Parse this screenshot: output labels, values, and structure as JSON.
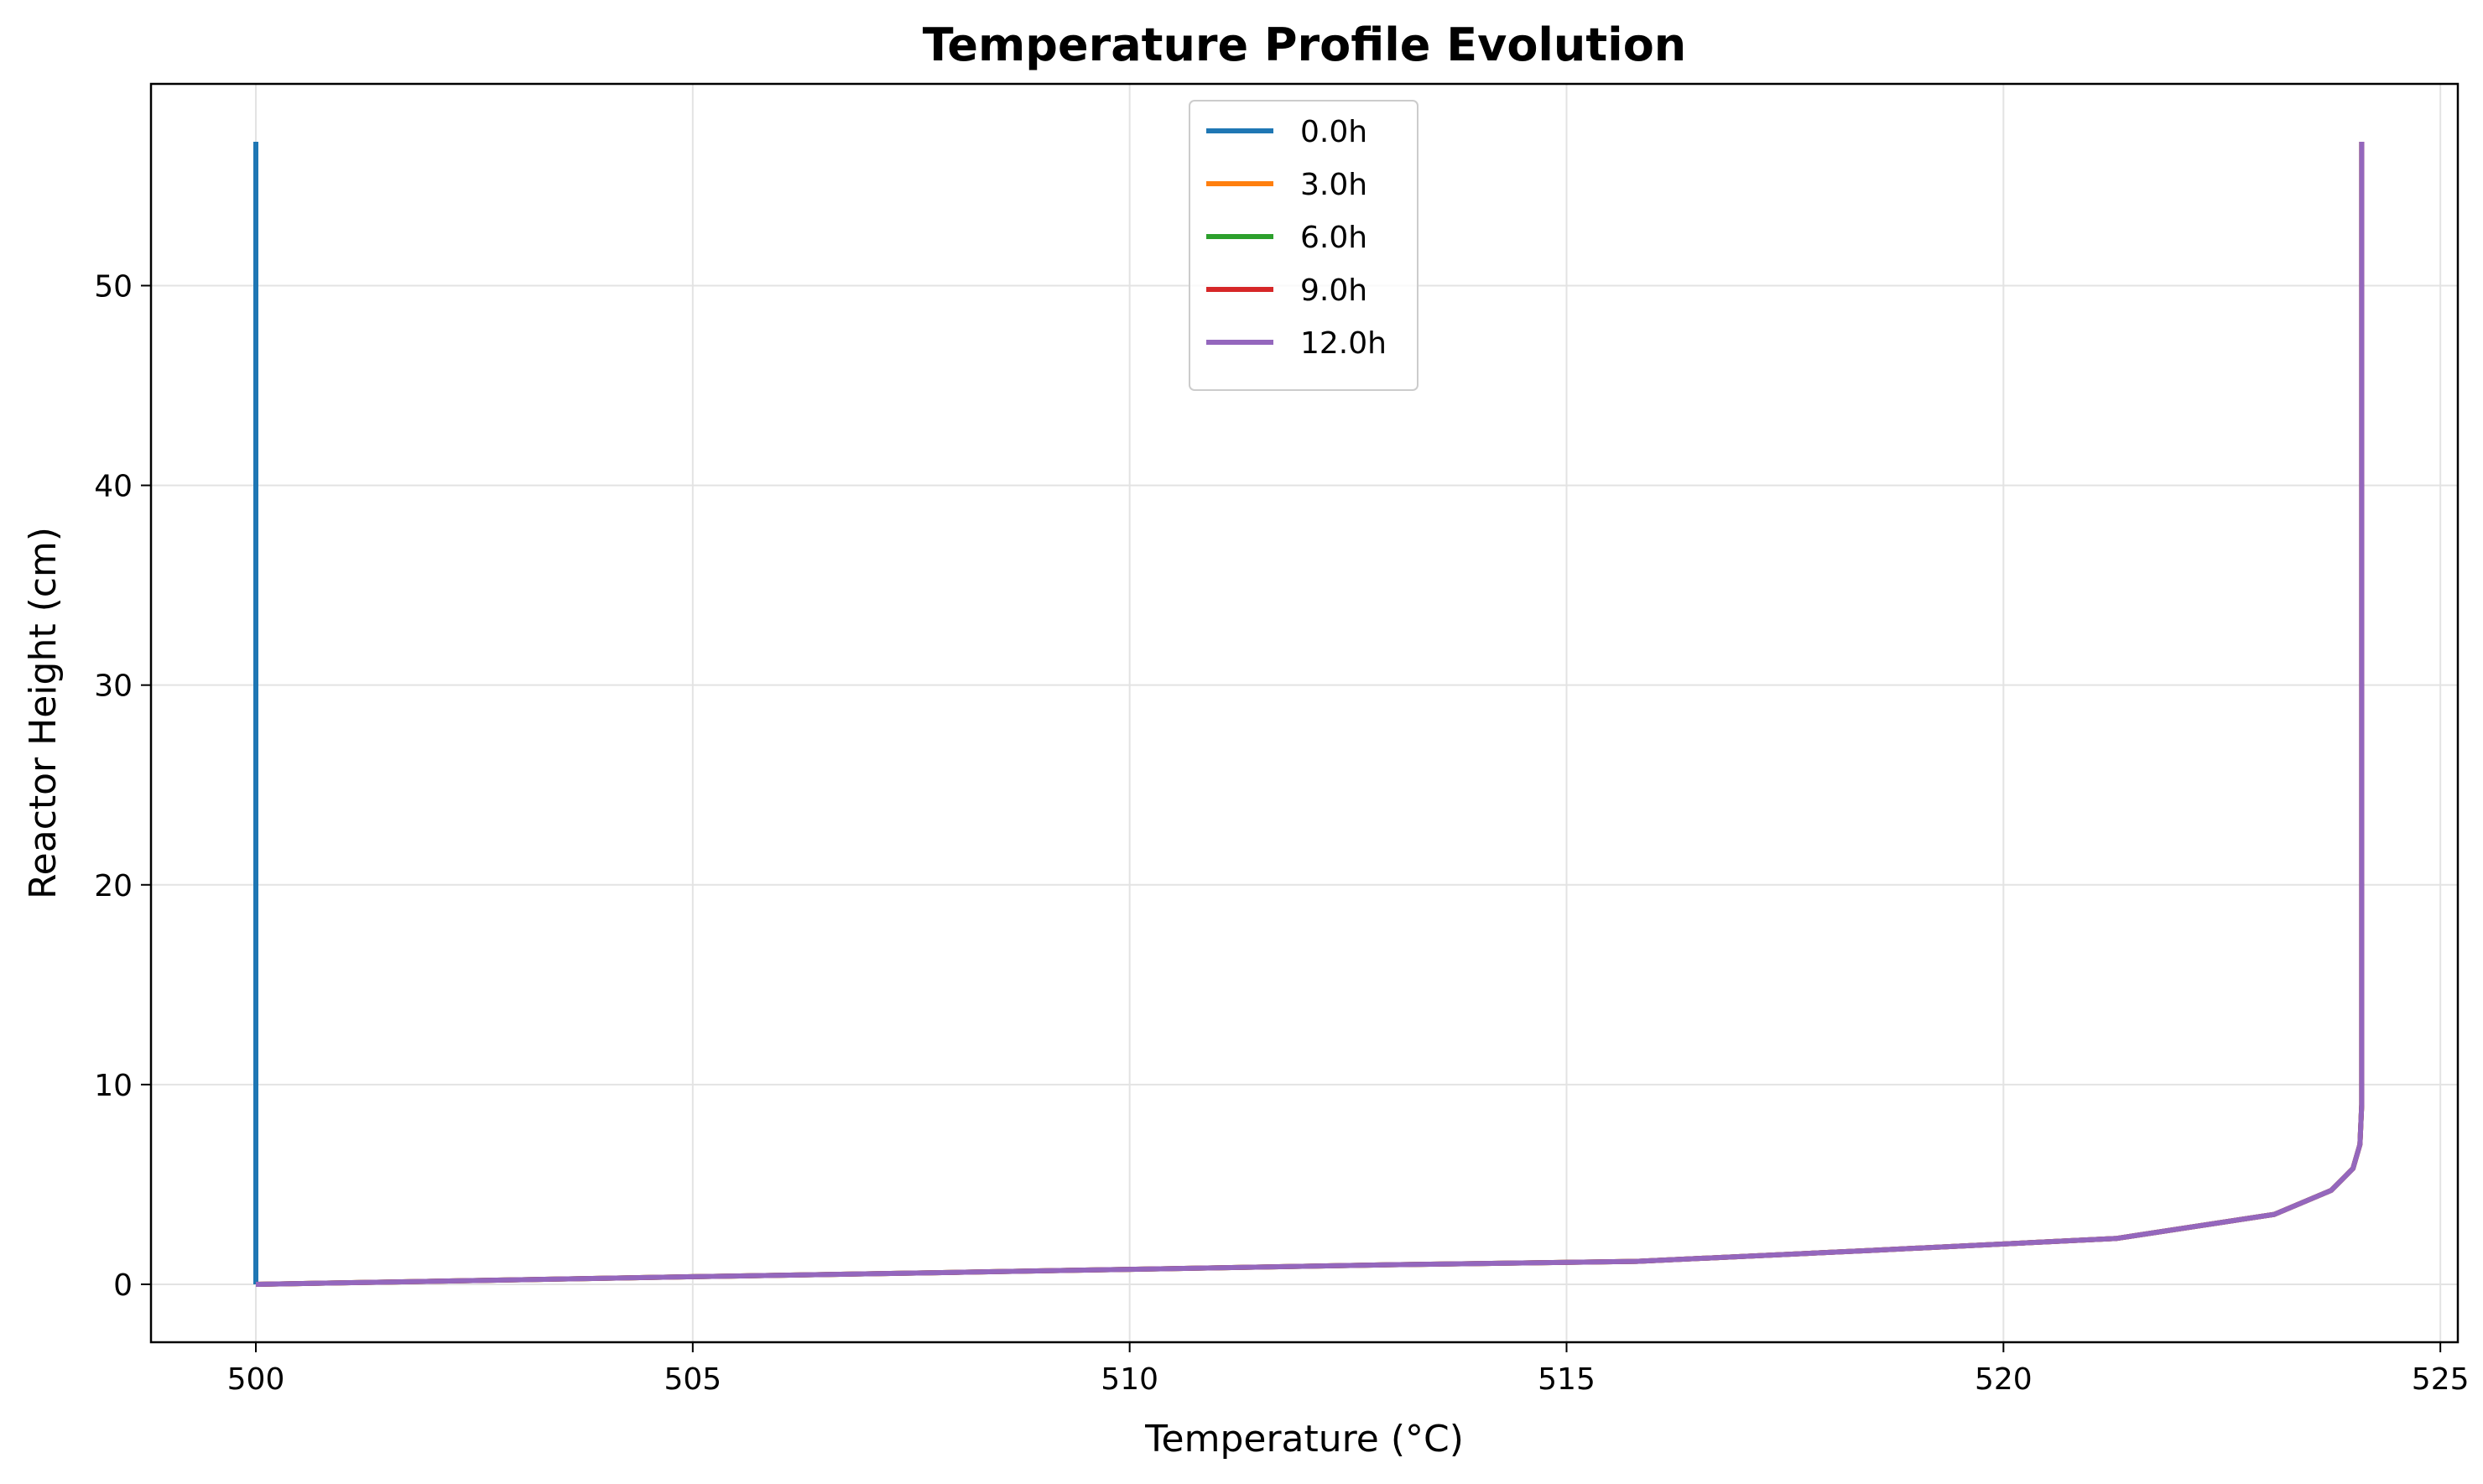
{
  "chart_data": {
    "type": "line",
    "title": "Temperature Profile Evolution",
    "xlabel": "Temperature (°C)",
    "ylabel": "Reactor Height (cm)",
    "xlim": [
      498.8,
      525.2
    ],
    "ylim": [
      -2.9,
      60.1
    ],
    "xticks": [
      500,
      505,
      510,
      515,
      520,
      525
    ],
    "yticks": [
      0,
      10,
      20,
      30,
      40,
      50
    ],
    "grid": true,
    "legend_position": "upper center",
    "series": [
      {
        "name": "0.0h",
        "color": "#1f77b4",
        "x": [
          500.0,
          500.0
        ],
        "y": [
          0.0,
          57.2
        ]
      },
      {
        "name": "3.0h",
        "color": "#ff7f0e",
        "x": [
          500.0,
          502.0,
          505.0,
          508.0,
          510.0,
          513.0,
          515.8,
          518.5,
          521.3,
          523.1,
          523.75,
          524.0,
          524.08,
          524.1,
          524.1
        ],
        "y": [
          0.0,
          0.15,
          0.38,
          0.6,
          0.75,
          0.98,
          1.15,
          1.7,
          2.3,
          3.5,
          4.7,
          5.8,
          7.0,
          9.0,
          57.2
        ]
      },
      {
        "name": "6.0h",
        "color": "#2ca02c",
        "x": [
          500.0,
          502.0,
          505.0,
          508.0,
          510.0,
          513.0,
          515.8,
          518.5,
          521.3,
          523.1,
          523.75,
          524.0,
          524.08,
          524.1,
          524.1
        ],
        "y": [
          0.0,
          0.15,
          0.38,
          0.6,
          0.75,
          0.98,
          1.15,
          1.7,
          2.3,
          3.5,
          4.7,
          5.8,
          7.0,
          9.0,
          57.2
        ]
      },
      {
        "name": "9.0h",
        "color": "#d62728",
        "x": [
          500.0,
          502.0,
          505.0,
          508.0,
          510.0,
          513.0,
          515.8,
          518.5,
          521.3,
          523.1,
          523.75,
          524.0,
          524.08,
          524.1,
          524.1
        ],
        "y": [
          0.0,
          0.15,
          0.38,
          0.6,
          0.75,
          0.98,
          1.15,
          1.7,
          2.3,
          3.5,
          4.7,
          5.8,
          7.0,
          9.0,
          57.2
        ]
      },
      {
        "name": "12.0h",
        "color": "#9467bd",
        "x": [
          500.0,
          502.0,
          505.0,
          508.0,
          510.0,
          513.0,
          515.8,
          518.5,
          521.3,
          523.1,
          523.75,
          524.0,
          524.08,
          524.1,
          524.1
        ],
        "y": [
          0.0,
          0.15,
          0.38,
          0.6,
          0.75,
          0.98,
          1.15,
          1.7,
          2.3,
          3.5,
          4.7,
          5.8,
          7.0,
          9.0,
          57.2
        ]
      }
    ]
  }
}
